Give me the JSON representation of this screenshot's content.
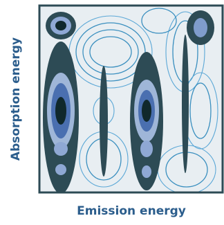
{
  "chart_data": {
    "type": "contour",
    "xlabel": "Emission energy",
    "ylabel": "Absorption energy"
  }
}
